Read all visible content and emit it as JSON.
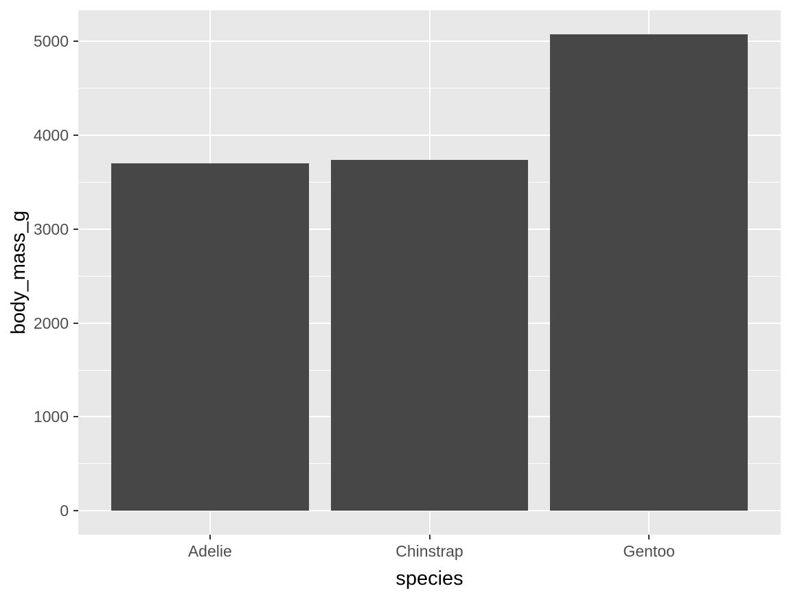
{
  "chart_data": {
    "type": "bar",
    "title": "",
    "xlabel": "species",
    "ylabel": "body_mass_g",
    "categories": [
      "Adelie",
      "Chinstrap",
      "Gentoo"
    ],
    "values": [
      3700.66,
      3733.09,
      5076.02
    ],
    "y_ticks": [
      0,
      1000,
      2000,
      3000,
      4000,
      5000
    ],
    "y_tick_labels": [
      "0",
      "1000",
      "2000",
      "3000",
      "4000",
      "5000"
    ],
    "y_minor_ticks": [
      500,
      1500,
      2500,
      3500,
      4500
    ],
    "ylim": [
      -253.8,
      5329.8
    ],
    "xlim": [
      0.4,
      3.6
    ],
    "bar_width": 0.9,
    "grid": "major-and-minor-white-on-grey",
    "legend": "none",
    "colors": {
      "bar_fill": "#474747",
      "panel_bg": "#E8E8E8",
      "gridline": "#FFFFFF",
      "tick_text": "#4D4D4D",
      "axis_title_text": "#000000",
      "tick_mark": "#333333",
      "figure_bg": "#FFFFFF"
    }
  }
}
